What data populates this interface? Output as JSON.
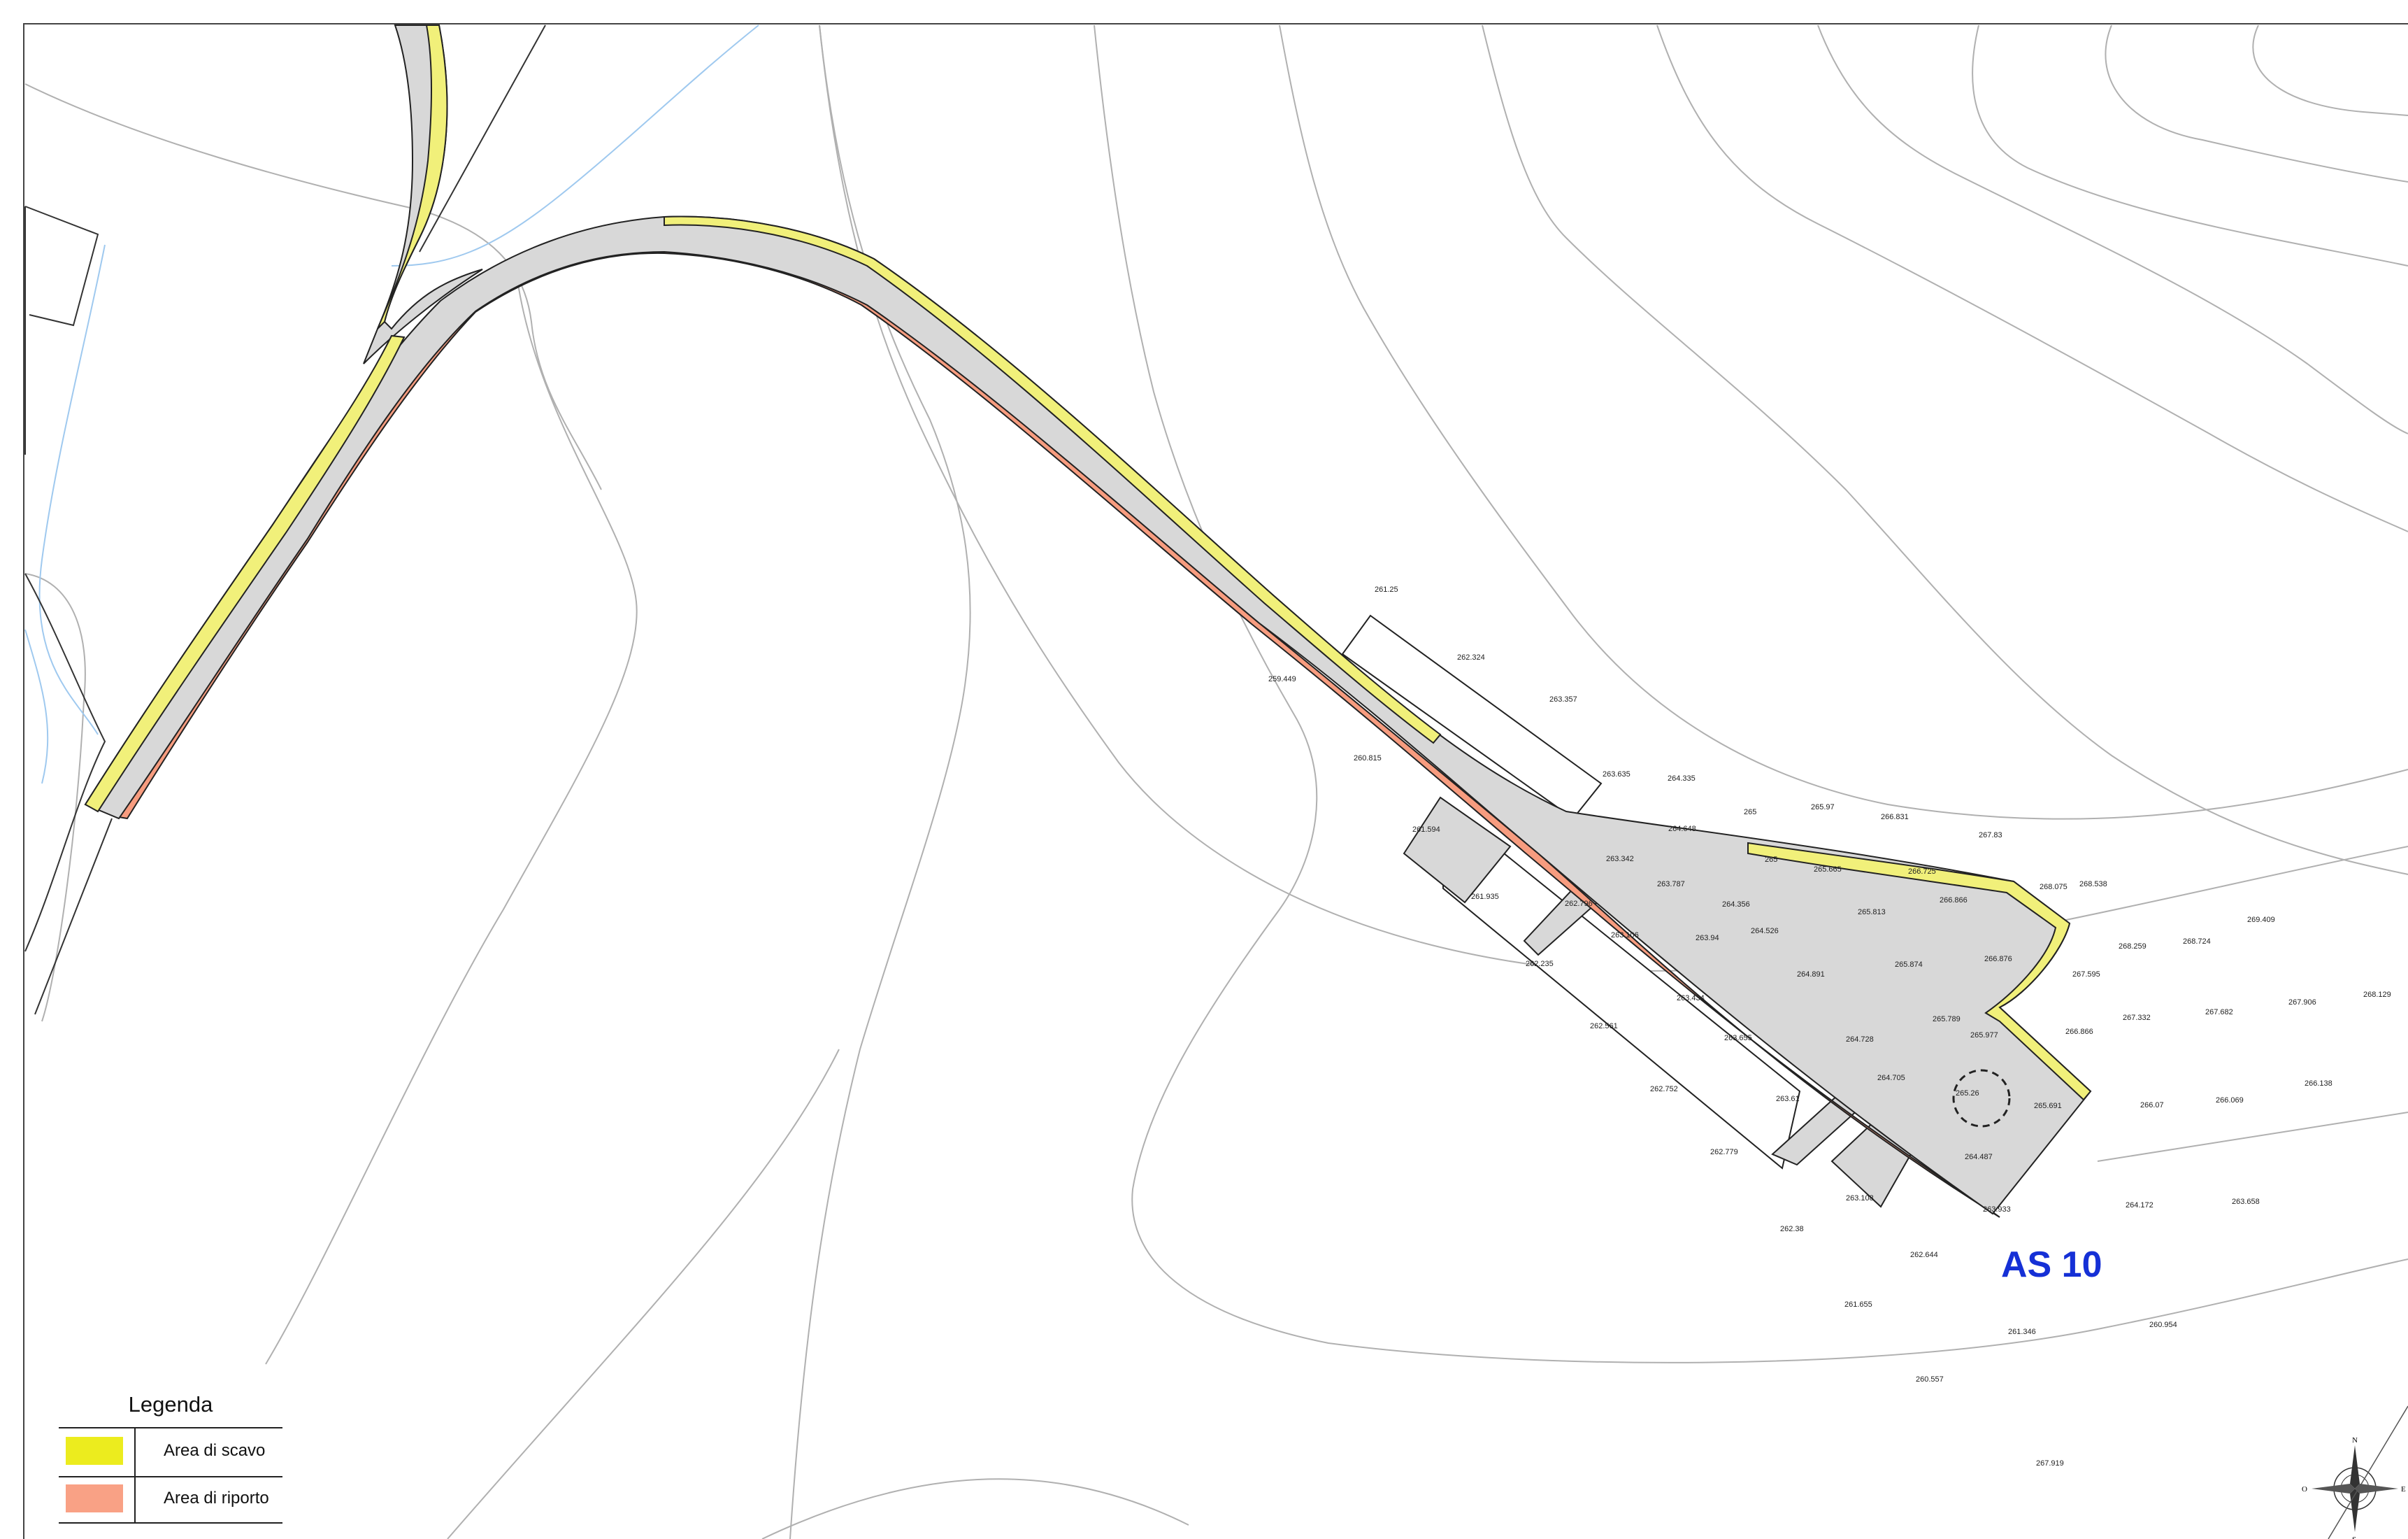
{
  "site_label": "AS 10",
  "legend": {
    "title": "Legenda",
    "items": [
      {
        "label": "Area di scavo",
        "color": "#ecec1e"
      },
      {
        "label": "Area di riporto",
        "color": "#f9a185"
      }
    ]
  },
  "colors": {
    "road_fill": "#d8d8d8",
    "excavation": "#f1f07a",
    "fill_area": "#f79c7f",
    "contour": "#b0b0b0",
    "stream": "#9fc9ef",
    "label_blue": "#1530d6"
  },
  "compass": {
    "icon": "north-arrow-compass-icon",
    "letters": [
      "N",
      "E",
      "S",
      "O"
    ]
  },
  "elevations": [
    "261.25",
    "262.324",
    "259.449",
    "263.357",
    "260.815",
    "263.635",
    "264.335",
    "265",
    "265.97",
    "266.831",
    "267.83",
    "261.594",
    "264.648",
    "263.342",
    "265",
    "265.665",
    "266.725",
    "268.075",
    "268.538",
    "261.935",
    "263.787",
    "264.356",
    "265.813",
    "266.866",
    "262.796",
    "263.106",
    "263.94",
    "264.526",
    "268.259",
    "268.724",
    "269.409",
    "262.235",
    "264.891",
    "265.874",
    "266.876",
    "267.595",
    "263.434",
    "265.789",
    "267.332",
    "267.682",
    "267.906",
    "268.129",
    "262.561",
    "263.655",
    "264.728",
    "265.977",
    "266.866",
    "264.705",
    "265.26",
    "265.691",
    "266.07",
    "266.069",
    "266.138",
    "262.752",
    "263.61",
    "262.779",
    "264.487",
    "263.108",
    "263.933",
    "264.172",
    "263.658",
    "262.38",
    "262.644",
    "261.655",
    "261.346",
    "260.954",
    "260.557",
    "267.919"
  ]
}
